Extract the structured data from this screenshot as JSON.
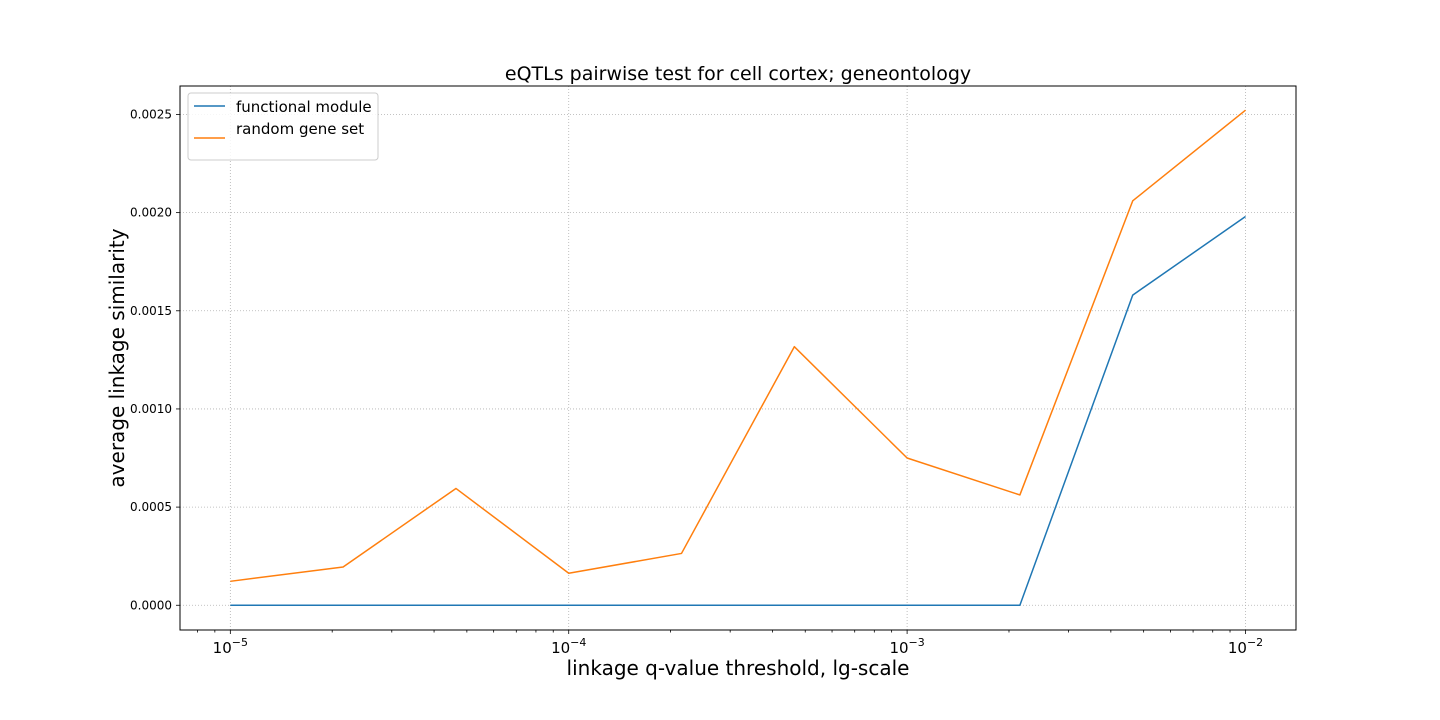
{
  "chart_data": {
    "type": "line",
    "title": "eQTLs pairwise test for cell cortex; geneontology",
    "xlabel": "linkage q-value threshold, lg-scale",
    "ylabel": "average linkage similarity",
    "xscale": "log",
    "xlim": [
      7.1e-06,
      0.0141
    ],
    "ylim": [
      -0.000126,
      0.002645
    ],
    "grid": true,
    "legend_position": "upper-left",
    "x": [
      1e-05,
      2.154e-05,
      4.642e-05,
      0.0001,
      0.0002154,
      0.0004642,
      0.001,
      0.002154,
      0.004642,
      0.01
    ],
    "x_ticks": [
      {
        "value": 1e-05,
        "base": "10",
        "exp": "−5"
      },
      {
        "value": 0.0001,
        "base": "10",
        "exp": "−4"
      },
      {
        "value": 0.001,
        "base": "10",
        "exp": "−3"
      },
      {
        "value": 0.01,
        "base": "10",
        "exp": "−2"
      }
    ],
    "y_ticks": [
      {
        "value": 0.0,
        "label": "0.0000"
      },
      {
        "value": 0.0005,
        "label": "0.0005"
      },
      {
        "value": 0.001,
        "label": "0.0010"
      },
      {
        "value": 0.0015,
        "label": "0.0015"
      },
      {
        "value": 0.002,
        "label": "0.0020"
      },
      {
        "value": 0.0025,
        "label": "0.0025"
      }
    ],
    "series": [
      {
        "name": "functional module",
        "color": "#1f77b4",
        "values": [
          0.0,
          0.0,
          0.0,
          0.0,
          0.0,
          0.0,
          0.0,
          0.0,
          0.00158,
          0.00198
        ]
      },
      {
        "name": "random gene set",
        "color": "#ff7f0e",
        "values": [
          0.000122,
          0.000195,
          0.000595,
          0.000163,
          0.000264,
          0.001317,
          0.00075,
          0.000562,
          0.00206,
          0.002522
        ]
      }
    ]
  }
}
